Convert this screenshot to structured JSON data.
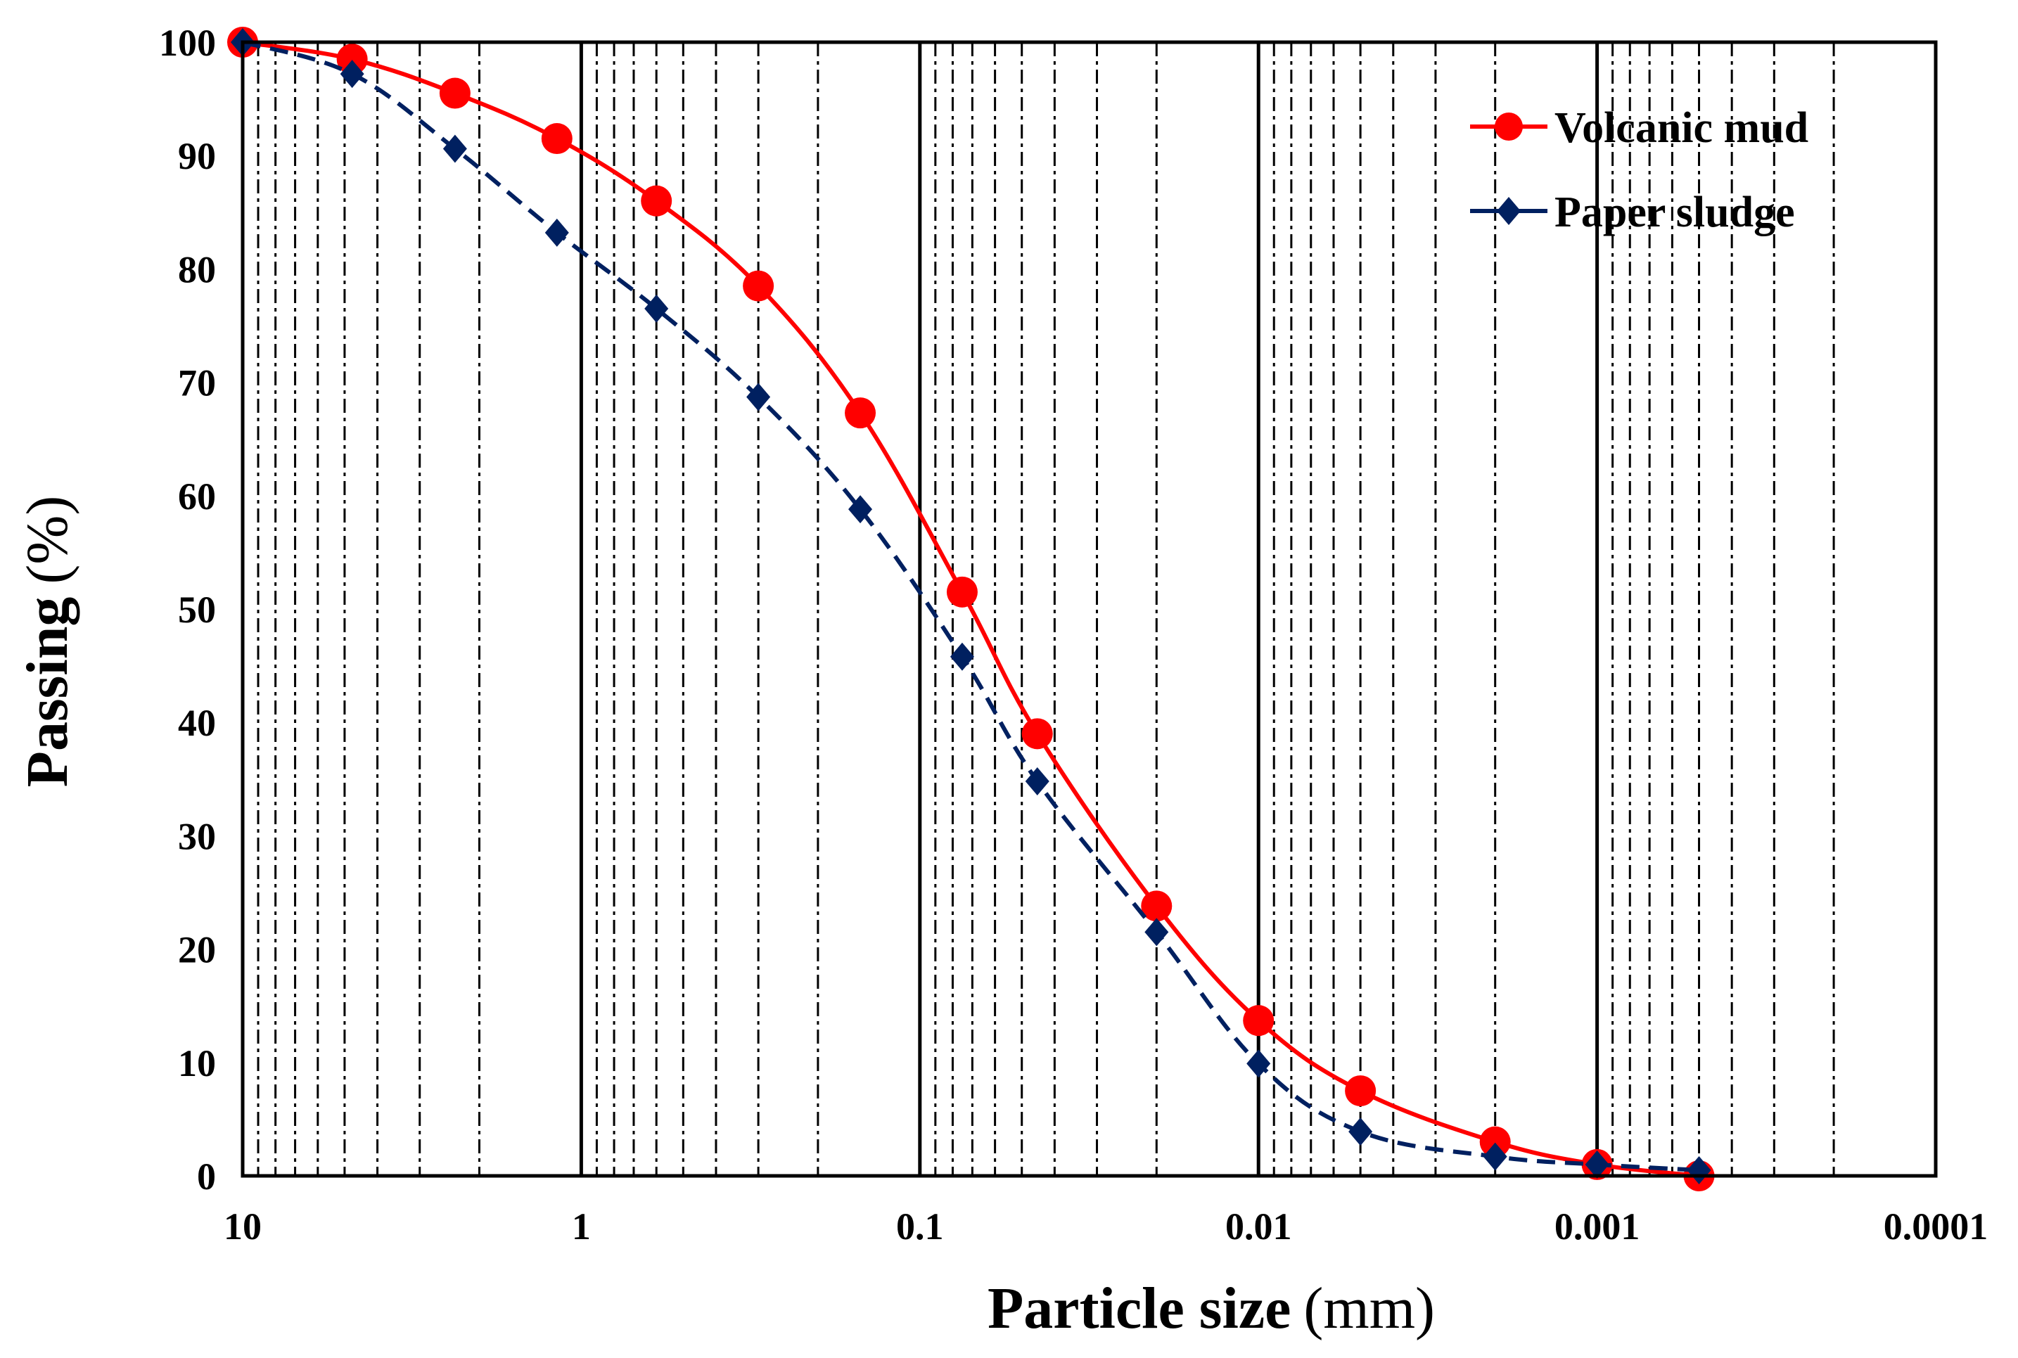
{
  "chart_data": {
    "type": "line",
    "xscale": "log",
    "xreversed": true,
    "xlim": [
      10,
      0.0001
    ],
    "ylim": [
      0,
      100
    ],
    "x_ticks": [
      {
        "value": 10,
        "label": "10"
      },
      {
        "value": 1,
        "label": "1"
      },
      {
        "value": 0.1,
        "label": "0.1"
      },
      {
        "value": 0.01,
        "label": "0.01"
      },
      {
        "value": 0.001,
        "label": "0.001"
      },
      {
        "value": 0.0001,
        "label": "0.0001"
      }
    ],
    "y_ticks": [
      {
        "value": 0,
        "label": "0"
      },
      {
        "value": 10,
        "label": "10"
      },
      {
        "value": 20,
        "label": "20"
      },
      {
        "value": 30,
        "label": "30"
      },
      {
        "value": 40,
        "label": "40"
      },
      {
        "value": 50,
        "label": "50"
      },
      {
        "value": 60,
        "label": "60"
      },
      {
        "value": 70,
        "label": "70"
      },
      {
        "value": 80,
        "label": "80"
      },
      {
        "value": 90,
        "label": "90"
      },
      {
        "value": 100,
        "label": "100"
      }
    ],
    "xlabel_bold": "Particle size",
    "xlabel_unit": "(mm)",
    "ylabel_bold": "Passing",
    "ylabel_unit": "(%)",
    "grid": "log minor dash-dot vertical lines, solid decade lines",
    "legend_position": "top-right",
    "series": [
      {
        "name": "Volcanic mud",
        "color": "#ff0000",
        "marker": "circle",
        "line_style": "solid",
        "points": [
          {
            "x": 10,
            "y": 100
          },
          {
            "x": 4.75,
            "y": 98.5
          },
          {
            "x": 2.36,
            "y": 95.5
          },
          {
            "x": 1.18,
            "y": 91.5
          },
          {
            "x": 0.6,
            "y": 86
          },
          {
            "x": 0.3,
            "y": 78.5
          },
          {
            "x": 0.15,
            "y": 67.3
          },
          {
            "x": 0.075,
            "y": 51.5
          },
          {
            "x": 0.045,
            "y": 39
          },
          {
            "x": 0.02,
            "y": 23.8
          },
          {
            "x": 0.01,
            "y": 13.7
          },
          {
            "x": 0.005,
            "y": 7.5
          },
          {
            "x": 0.002,
            "y": 3
          },
          {
            "x": 0.001,
            "y": 1
          },
          {
            "x": 0.0005,
            "y": 0
          }
        ]
      },
      {
        "name": "Paper sludge",
        "color": "#002060",
        "marker": "diamond",
        "line_style": "dashed",
        "points": [
          {
            "x": 10,
            "y": 100
          },
          {
            "x": 4.75,
            "y": 97.2
          },
          {
            "x": 2.36,
            "y": 90.6
          },
          {
            "x": 1.18,
            "y": 83.2
          },
          {
            "x": 0.6,
            "y": 76.5
          },
          {
            "x": 0.3,
            "y": 68.7
          },
          {
            "x": 0.15,
            "y": 58.8
          },
          {
            "x": 0.075,
            "y": 45.8
          },
          {
            "x": 0.045,
            "y": 34.8
          },
          {
            "x": 0.02,
            "y": 21.5
          },
          {
            "x": 0.01,
            "y": 9.9
          },
          {
            "x": 0.005,
            "y": 3.9
          },
          {
            "x": 0.002,
            "y": 1.7
          },
          {
            "x": 0.001,
            "y": 1
          },
          {
            "x": 0.0005,
            "y": 0.5
          }
        ]
      }
    ]
  }
}
